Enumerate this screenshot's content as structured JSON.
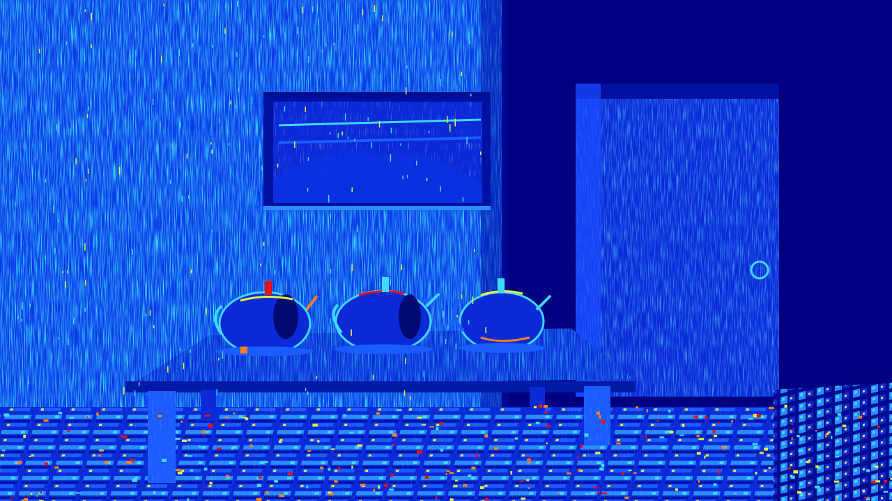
{
  "image": {
    "description_free": true,
    "palette": {
      "background": "#000080",
      "deep_blue": "#0010c0",
      "mid_blue": "#1a4cff",
      "light_blue": "#2a8cff",
      "cyan": "#40d8ff",
      "yellow": "#e8f040",
      "orange": "#ff8020",
      "red": "#e81010"
    }
  }
}
